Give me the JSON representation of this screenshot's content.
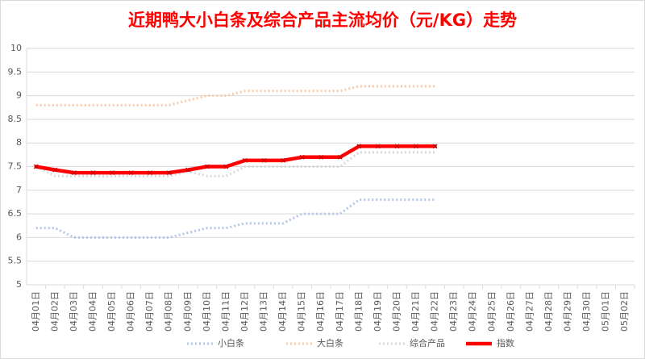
{
  "chart_data": {
    "type": "line",
    "title": "近期鸭大小白条及综合产品主流均价（元/KG）走势",
    "categories": [
      "04月01日",
      "04月02日",
      "04月03日",
      "04月04日",
      "04月05日",
      "04月06日",
      "04月07日",
      "04月08日",
      "04月09日",
      "04月10日",
      "04月11日",
      "04月12日",
      "04月13日",
      "04月14日",
      "04月15日",
      "04月16日",
      "04月17日",
      "04月18日",
      "04月19日",
      "04月20日",
      "04月21日",
      "04月22日",
      "04月23日",
      "04月24日",
      "04月25日",
      "04月26日",
      "04月27日",
      "04月28日",
      "04月29日",
      "04月30日",
      "05月01日",
      "05月02日"
    ],
    "series": [
      {
        "name": "小白条",
        "color": "#b4c7e7",
        "style": "dotted",
        "values": [
          6.2,
          6.2,
          6.0,
          6.0,
          6.0,
          6.0,
          6.0,
          6.0,
          6.1,
          6.2,
          6.2,
          6.3,
          6.3,
          6.3,
          6.5,
          6.5,
          6.5,
          6.8,
          6.8,
          6.8,
          6.8,
          6.8,
          null,
          null,
          null,
          null,
          null,
          null,
          null,
          null,
          null,
          null
        ]
      },
      {
        "name": "大白条",
        "color": "#f8cbad",
        "style": "dotted",
        "values": [
          8.8,
          8.8,
          8.8,
          8.8,
          8.8,
          8.8,
          8.8,
          8.8,
          8.9,
          9.0,
          9.0,
          9.1,
          9.1,
          9.1,
          9.1,
          9.1,
          9.1,
          9.2,
          9.2,
          9.2,
          9.2,
          9.2,
          null,
          null,
          null,
          null,
          null,
          null,
          null,
          null,
          null,
          null
        ]
      },
      {
        "name": "综合产品",
        "color": "#d9d9d9",
        "style": "dotted",
        "values": [
          7.5,
          7.3,
          7.3,
          7.3,
          7.3,
          7.3,
          7.3,
          7.3,
          7.4,
          7.3,
          7.3,
          7.5,
          7.5,
          7.5,
          7.5,
          7.5,
          7.5,
          7.8,
          7.8,
          7.8,
          7.8,
          7.8,
          null,
          null,
          null,
          null,
          null,
          null,
          null,
          null,
          null,
          null
        ]
      },
      {
        "name": "指数",
        "color": "#ff0000",
        "style": "solid",
        "values": [
          7.5,
          7.43,
          7.37,
          7.37,
          7.37,
          7.37,
          7.37,
          7.37,
          7.43,
          7.5,
          7.5,
          7.63,
          7.63,
          7.63,
          7.7,
          7.7,
          7.7,
          7.93,
          7.93,
          7.93,
          7.93,
          7.93,
          null,
          null,
          null,
          null,
          null,
          null,
          null,
          null,
          null,
          null
        ]
      }
    ],
    "ylim": [
      5,
      10
    ],
    "yticks": [
      5,
      5.5,
      6,
      6.5,
      7,
      7.5,
      8,
      8.5,
      9,
      9.5,
      10
    ],
    "grid": true,
    "legend": "bottom"
  }
}
